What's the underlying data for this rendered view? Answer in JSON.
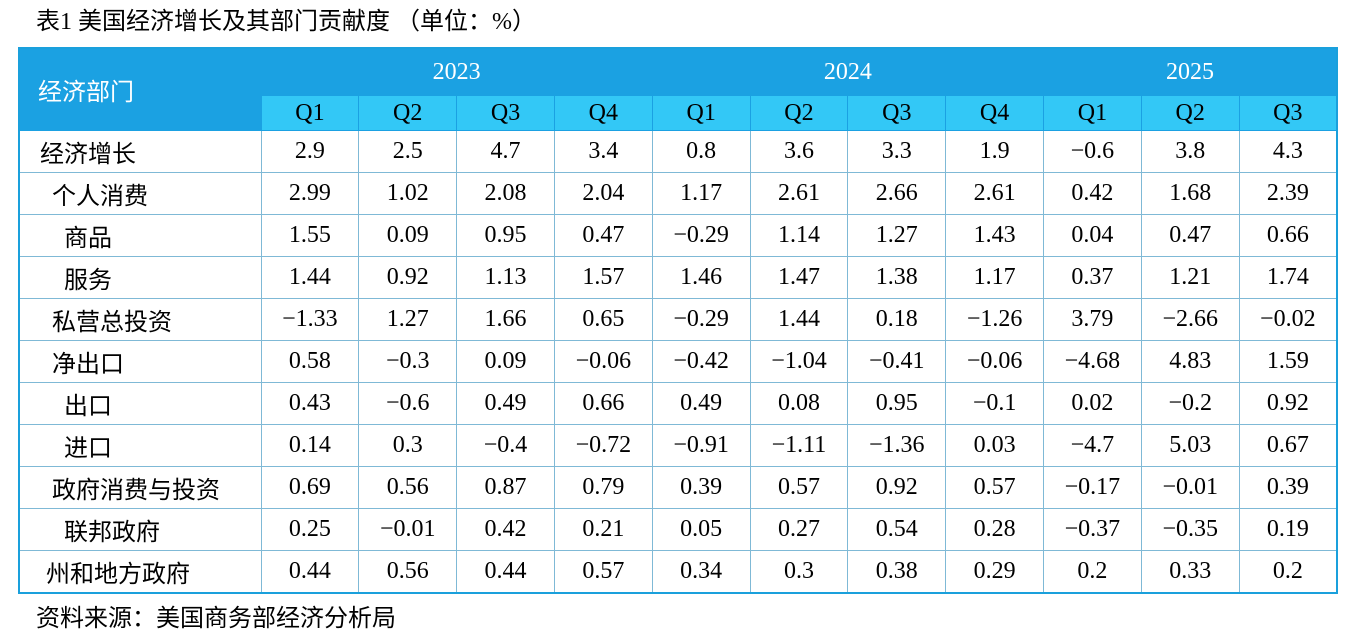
{
  "title": "表1 美国经济增长及其部门贡献度 （单位：%）",
  "table": {
    "corner": "经济部门",
    "years": [
      "2023",
      "2024",
      "2025"
    ],
    "quarters": [
      "Q1",
      "Q2",
      "Q3",
      "Q4",
      "Q1",
      "Q2",
      "Q3",
      "Q4",
      "Q1",
      "Q2",
      "Q3"
    ],
    "rows": [
      [
        "经济增长",
        "2.9",
        "2.5",
        "4.7",
        "3.4",
        "0.8",
        "3.6",
        "3.3",
        "1.9",
        "−0.6",
        "3.8",
        "4.3"
      ],
      [
        "个人消费",
        "2.99",
        "1.02",
        "2.08",
        "2.04",
        "1.17",
        "2.61",
        "2.66",
        "2.61",
        "0.42",
        "1.68",
        "2.39"
      ],
      [
        "商品",
        "1.55",
        "0.09",
        "0.95",
        "0.47",
        "−0.29",
        "1.14",
        "1.27",
        "1.43",
        "0.04",
        "0.47",
        "0.66"
      ],
      [
        "服务",
        "1.44",
        "0.92",
        "1.13",
        "1.57",
        "1.46",
        "1.47",
        "1.38",
        "1.17",
        "0.37",
        "1.21",
        "1.74"
      ],
      [
        "私营总投资",
        "−1.33",
        "1.27",
        "1.66",
        "0.65",
        "−0.29",
        "1.44",
        "0.18",
        "−1.26",
        "3.79",
        "−2.66",
        "−0.02"
      ],
      [
        "净出口",
        "0.58",
        "−0.3",
        "0.09",
        "−0.06",
        "−0.42",
        "−1.04",
        "−0.41",
        "−0.06",
        "−4.68",
        "4.83",
        "1.59"
      ],
      [
        "出口",
        "0.43",
        "−0.6",
        "0.49",
        "0.66",
        "0.49",
        "0.08",
        "0.95",
        "−0.1",
        "0.02",
        "−0.2",
        "0.92"
      ],
      [
        "进口",
        "0.14",
        "0.3",
        "−0.4",
        "−0.72",
        "−0.91",
        "−1.11",
        "−1.36",
        "0.03",
        "−4.7",
        "5.03",
        "0.67"
      ],
      [
        "政府消费与投资",
        "0.69",
        "0.56",
        "0.87",
        "0.79",
        "0.39",
        "0.57",
        "0.92",
        "0.57",
        "−0.17",
        "−0.01",
        "0.39"
      ],
      [
        "联邦政府",
        "0.25",
        "−0.01",
        "0.42",
        "0.21",
        "0.05",
        "0.27",
        "0.54",
        "0.28",
        "−0.37",
        "−0.35",
        "0.19"
      ],
      [
        "州和地方政府",
        "0.44",
        "0.56",
        "0.44",
        "0.57",
        "0.34",
        "0.3",
        "0.38",
        "0.29",
        "0.2",
        "0.33",
        "0.2"
      ]
    ]
  },
  "source": "资料来源：美国商务部经济分析局"
}
